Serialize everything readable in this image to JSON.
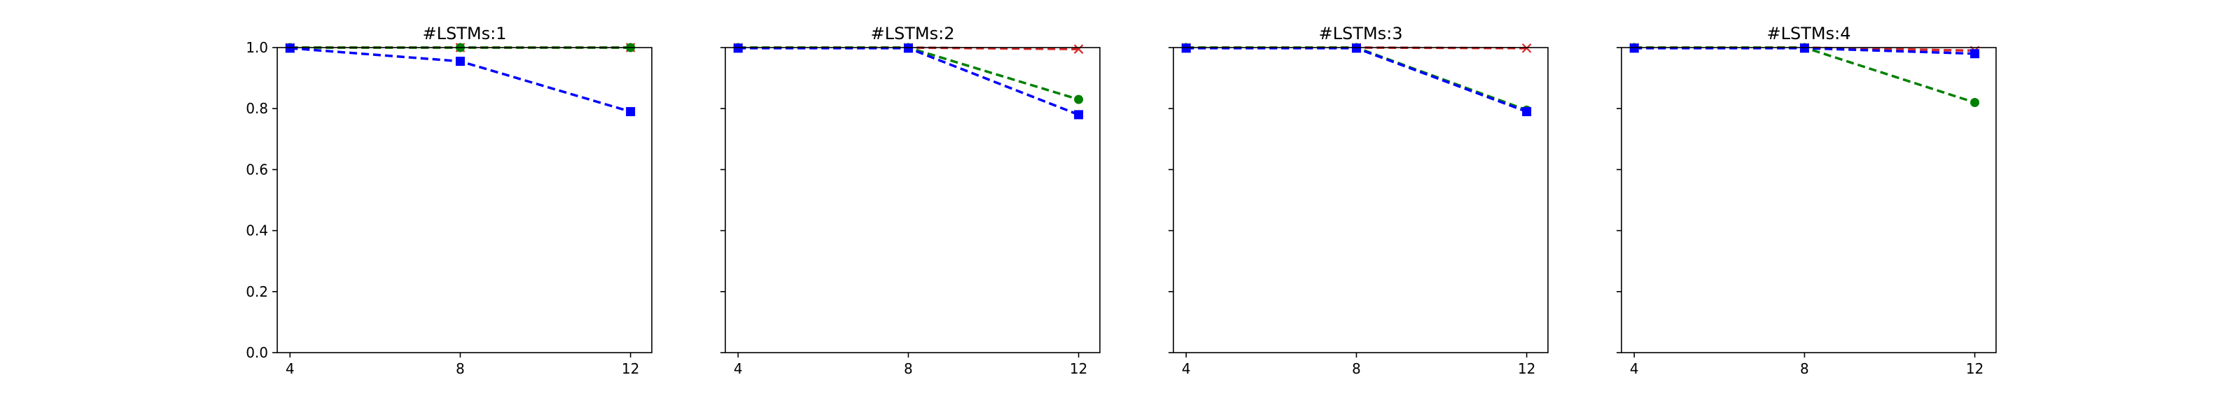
{
  "chart_data": [
    {
      "type": "line",
      "title": "#LSTMs:1",
      "x": [
        4,
        8,
        12
      ],
      "xticks": [
        "4",
        "8",
        "12"
      ],
      "ylim": [
        0.0,
        1.0
      ],
      "yticks": [
        "0.0",
        "0.2",
        "0.4",
        "0.6",
        "0.8",
        "1.0"
      ],
      "show_ytick_labels": true,
      "grid": false,
      "series": [
        {
          "color": "#d62728",
          "marker": "x",
          "values": [
            1.0,
            1.0,
            1.0
          ]
        },
        {
          "color": "#008000",
          "marker": "circle",
          "values": [
            1.0,
            1.0,
            1.0
          ]
        },
        {
          "color": "#0000ff",
          "marker": "square",
          "values": [
            0.998,
            0.955,
            0.79
          ]
        }
      ]
    },
    {
      "type": "line",
      "title": "#LSTMs:2",
      "x": [
        4,
        8,
        12
      ],
      "xticks": [
        "4",
        "8",
        "12"
      ],
      "ylim": [
        0.0,
        1.0
      ],
      "yticks": [
        "0.0",
        "0.2",
        "0.4",
        "0.6",
        "0.8",
        "1.0"
      ],
      "show_ytick_labels": false,
      "grid": false,
      "series": [
        {
          "color": "#d62728",
          "marker": "x",
          "values": [
            1.0,
            1.0,
            0.995
          ]
        },
        {
          "color": "#008000",
          "marker": "circle",
          "values": [
            1.0,
            1.0,
            0.83
          ]
        },
        {
          "color": "#0000ff",
          "marker": "square",
          "values": [
            0.998,
            0.998,
            0.78
          ]
        }
      ]
    },
    {
      "type": "line",
      "title": "#LSTMs:3",
      "x": [
        4,
        8,
        12
      ],
      "xticks": [
        "4",
        "8",
        "12"
      ],
      "ylim": [
        0.0,
        1.0
      ],
      "yticks": [
        "0.0",
        "0.2",
        "0.4",
        "0.6",
        "0.8",
        "1.0"
      ],
      "show_ytick_labels": false,
      "grid": false,
      "series": [
        {
          "color": "#d62728",
          "marker": "x",
          "values": [
            1.0,
            1.0,
            0.998
          ]
        },
        {
          "color": "#008000",
          "marker": "circle",
          "values": [
            1.0,
            1.0,
            0.795
          ]
        },
        {
          "color": "#0000ff",
          "marker": "square",
          "values": [
            0.998,
            0.998,
            0.79
          ]
        }
      ]
    },
    {
      "type": "line",
      "title": "#LSTMs:4",
      "x": [
        4,
        8,
        12
      ],
      "xticks": [
        "4",
        "8",
        "12"
      ],
      "ylim": [
        0.0,
        1.0
      ],
      "yticks": [
        "0.0",
        "0.2",
        "0.4",
        "0.6",
        "0.8",
        "1.0"
      ],
      "show_ytick_labels": false,
      "grid": false,
      "series": [
        {
          "color": "#d62728",
          "marker": "x",
          "values": [
            1.0,
            1.0,
            0.99
          ]
        },
        {
          "color": "#008000",
          "marker": "circle",
          "values": [
            1.0,
            1.0,
            0.82
          ]
        },
        {
          "color": "#0000ff",
          "marker": "square",
          "values": [
            0.998,
            0.998,
            0.98
          ]
        }
      ]
    }
  ]
}
